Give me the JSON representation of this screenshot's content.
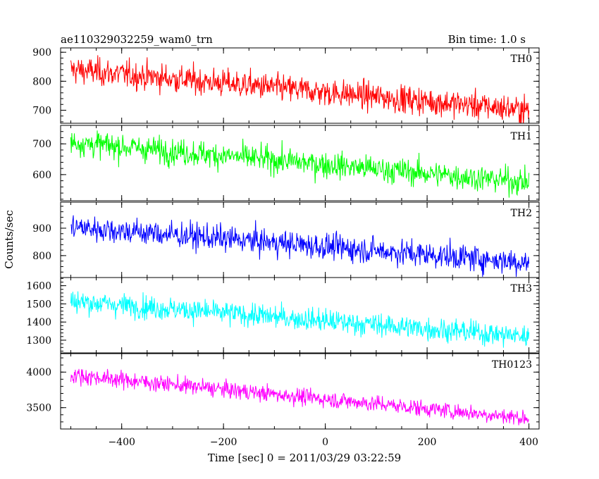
{
  "chart_data": {
    "type": "line",
    "title_left": "ae110329032259_wam0_trn",
    "title_right": "Bin time: 1.0 s",
    "xlabel": "Time [sec] 0 = 2011/03/29 03:22:59",
    "ylabel": "Counts/sec",
    "xlim": [
      -520,
      420
    ],
    "x_ticks": [
      -400,
      -200,
      0,
      200,
      400
    ],
    "x_start": -500,
    "x_end": 400,
    "bin_time": 1.0,
    "panels": [
      {
        "name": "TH0",
        "color": "#ff0000",
        "ylim": [
          655,
          915
        ],
        "y_ticks": [
          700,
          800,
          900
        ],
        "trend_start": 840,
        "trend_end": 700,
        "noise": 45
      },
      {
        "name": "TH1",
        "color": "#00ff00",
        "ylim": [
          515,
          760
        ],
        "y_ticks": [
          600,
          700
        ],
        "trend_start": 705,
        "trend_end": 575,
        "noise": 40
      },
      {
        "name": "TH2",
        "color": "#0000ff",
        "ylim": [
          720,
          995
        ],
        "y_ticks": [
          800,
          900
        ],
        "trend_start": 905,
        "trend_end": 775,
        "noise": 45
      },
      {
        "name": "TH3",
        "color": "#00ffff",
        "ylim": [
          1230,
          1645
        ],
        "y_ticks": [
          1300,
          1400,
          1500,
          1600
        ],
        "trend_start": 1515,
        "trend_end": 1320,
        "noise": 60
      },
      {
        "name": "TH0123",
        "color": "#ff00ff",
        "ylim": [
          3200,
          4260
        ],
        "y_ticks": [
          3500,
          4000
        ],
        "trend_start": 3960,
        "trend_end": 3350,
        "noise": 110
      }
    ]
  }
}
